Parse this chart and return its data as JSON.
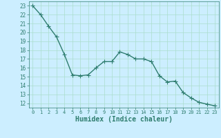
{
  "x": [
    0,
    1,
    2,
    3,
    4,
    5,
    6,
    7,
    8,
    9,
    10,
    11,
    12,
    13,
    14,
    15,
    16,
    17,
    18,
    19,
    20,
    21,
    22,
    23
  ],
  "y": [
    23.0,
    22.0,
    20.7,
    19.5,
    17.5,
    15.2,
    15.1,
    15.2,
    16.0,
    16.7,
    16.7,
    17.8,
    17.5,
    17.0,
    17.0,
    16.7,
    15.1,
    14.4,
    14.5,
    13.2,
    12.6,
    12.1,
    11.9,
    11.7
  ],
  "line_color": "#2e7d6e",
  "marker": "+",
  "marker_size": 4,
  "linewidth": 1.0,
  "bg_color": "#cceeff",
  "grid_color": "#aaddcc",
  "xlabel": "Humidex (Indice chaleur)",
  "xlabel_fontsize": 7,
  "xlabel_color": "#2e7d6e",
  "tick_color": "#2e7d6e",
  "ytick_fontsize": 5.5,
  "xtick_fontsize": 5.0,
  "ylim": [
    11.5,
    23.5
  ],
  "xlim": [
    -0.5,
    23.5
  ],
  "yticks": [
    12,
    13,
    14,
    15,
    16,
    17,
    18,
    19,
    20,
    21,
    22,
    23
  ],
  "xticks": [
    0,
    1,
    2,
    3,
    4,
    5,
    6,
    7,
    8,
    9,
    10,
    11,
    12,
    13,
    14,
    15,
    16,
    17,
    18,
    19,
    20,
    21,
    22,
    23
  ]
}
